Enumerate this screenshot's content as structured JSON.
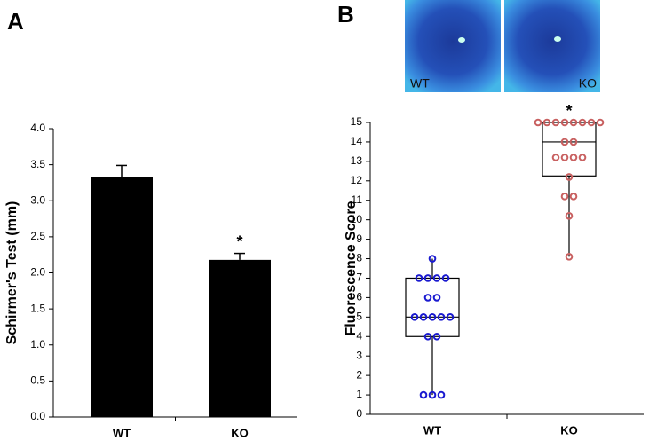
{
  "chart_data": [
    {
      "type": "bar",
      "panel": "A",
      "ylabel": "Schirmer's Test (mm)",
      "categories": [
        "WT",
        "KO"
      ],
      "values": [
        3.33,
        2.18
      ],
      "errors": [
        0.16,
        0.09
      ],
      "color": "#000000",
      "ylim": [
        0,
        4
      ],
      "yticks": [
        {
          "value": 0,
          "label": "0.0"
        },
        {
          "value": 0.5,
          "label": "0.5"
        },
        {
          "value": 1,
          "label": "1.0"
        },
        {
          "value": 1.5,
          "label": "1.5"
        },
        {
          "value": 2,
          "label": "2.0"
        },
        {
          "value": 2.5,
          "label": "2.5"
        },
        {
          "value": 3,
          "label": "3.0"
        },
        {
          "value": 3.5,
          "label": "3.5"
        },
        {
          "value": 4,
          "label": "4.0"
        }
      ],
      "annotation": "*",
      "annotation_category": "KO"
    },
    {
      "type": "box",
      "panel": "B",
      "ylabel": "Fluorescence Score",
      "image_labels": [
        "WT",
        "KO"
      ],
      "categories": [
        "WT",
        "KO"
      ],
      "boxes": [
        {
          "low": 1,
          "q1": 4,
          "median": 5,
          "q3": 7,
          "high": 8
        },
        {
          "low": 8.1,
          "q1": 12.25,
          "median": 14,
          "q3": 15,
          "high": 15
        }
      ],
      "points": [
        [
          8,
          7,
          7,
          7,
          7,
          6,
          6,
          5,
          5,
          5,
          5,
          5,
          4,
          4,
          1,
          1,
          1
        ],
        [
          15,
          15,
          15,
          15,
          15,
          15,
          15,
          15,
          14,
          14,
          13.2,
          13.2,
          13.2,
          13.2,
          12.2,
          11.2,
          11.2,
          10.2,
          8.1
        ]
      ],
      "colors": [
        "#1a1ad0",
        "#c86060"
      ],
      "ylim": [
        0,
        15
      ],
      "yticks": [
        0,
        1,
        2,
        3,
        4,
        5,
        6,
        7,
        8,
        9,
        10,
        11,
        12,
        13,
        14,
        15
      ],
      "annotation": "*",
      "annotation_category": "KO"
    }
  ]
}
